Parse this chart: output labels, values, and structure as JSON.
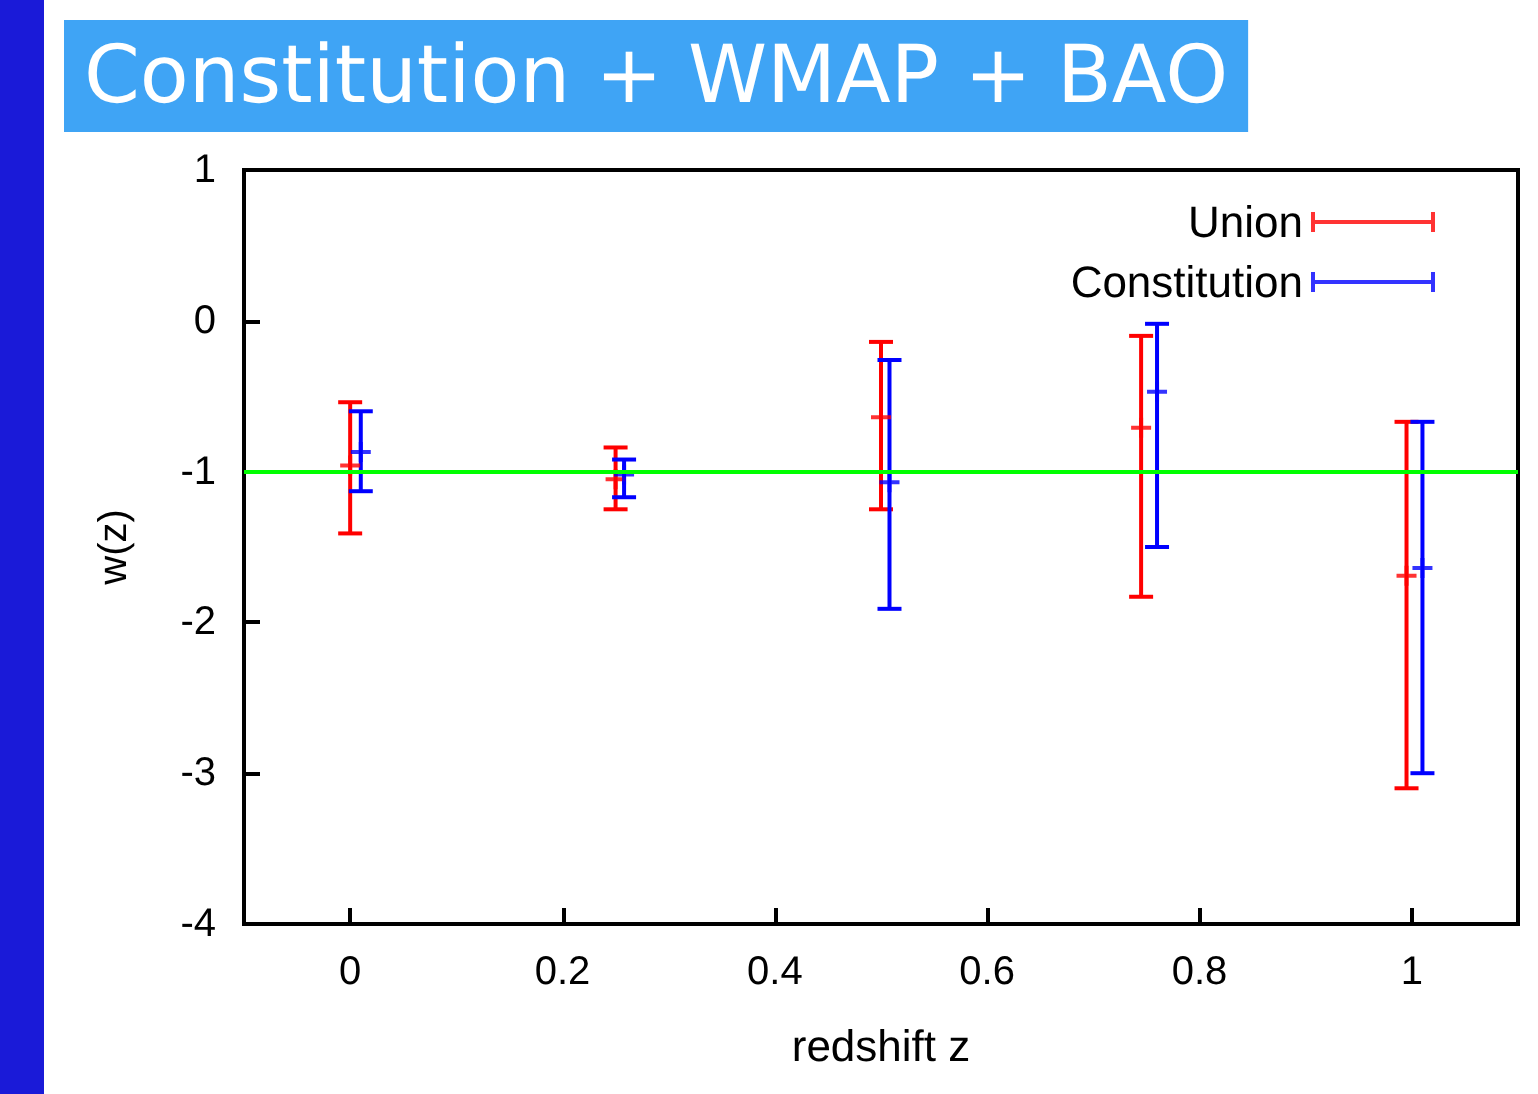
{
  "chart_data": {
    "type": "scatter",
    "title": "Constitution + WMAP + BAO",
    "xlabel": "redshift z",
    "ylabel": "w(z)",
    "xlim": [
      -0.1,
      1.1
    ],
    "xticks": [
      0,
      0.2,
      0.4,
      0.6,
      0.8,
      1
    ],
    "ylim": [
      -4,
      1
    ],
    "yticks": [
      -4,
      -3,
      -2,
      -1,
      0,
      1
    ],
    "grid": false,
    "legend": "top right",
    "marker": "cross",
    "series": [
      {
        "name": "Union",
        "color": "#ff0000",
        "x": [
          0,
          0.25,
          0.5,
          0.745,
          0.995
        ],
        "values": [
          -0.96,
          -1.05,
          -0.64,
          -0.71,
          -1.69
        ],
        "errors": [
          [
            -1.41,
            -0.54
          ],
          [
            -1.25,
            -0.84
          ],
          [
            -1.25,
            -0.14
          ],
          [
            -1.83,
            -0.1
          ],
          [
            -3.1,
            -0.67
          ]
        ]
      },
      {
        "name": "Constitution",
        "color": "#0000ff",
        "x": [
          0.01,
          0.258,
          0.508,
          0.76,
          1.01
        ],
        "values": [
          -0.87,
          -1.02,
          -1.07,
          -0.47,
          -1.64
        ],
        "errors": [
          [
            -1.13,
            -0.6
          ],
          [
            -1.17,
            -0.92
          ],
          [
            -1.91,
            -0.26
          ],
          [
            -1.5,
            -0.02
          ],
          [
            -3.0,
            -0.67
          ]
        ]
      }
    ],
    "ref_lines": [
      {
        "axis": "y",
        "value": -1,
        "color": "#00ff00"
      }
    ]
  }
}
